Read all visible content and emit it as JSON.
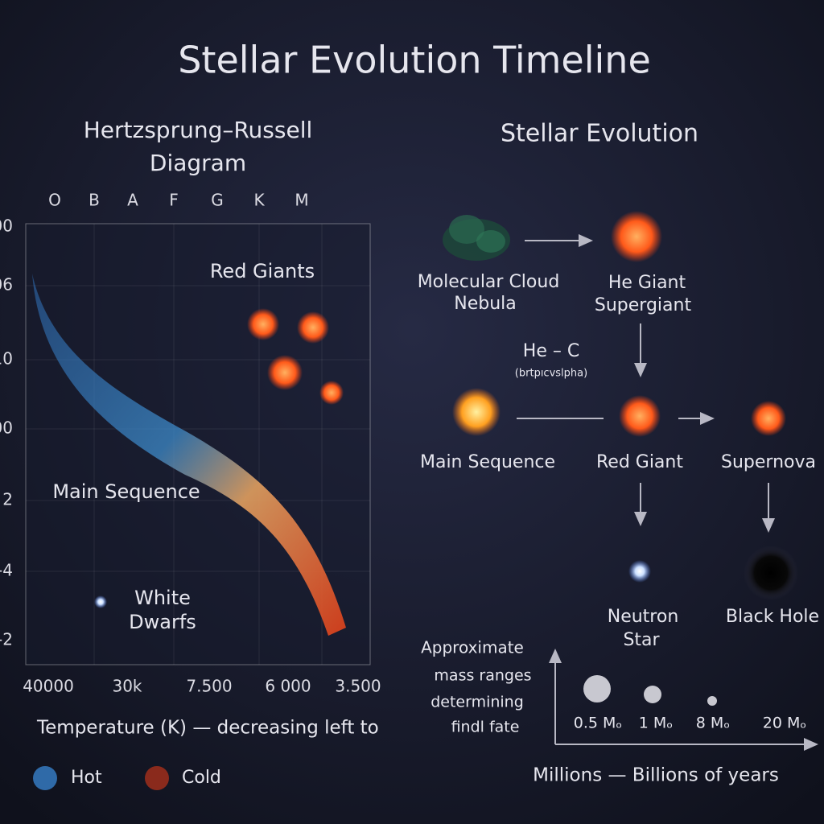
{
  "title": "Stellar Evolution Timeline",
  "hr": {
    "title": [
      "Hertzsprung–Russell",
      "Diagram"
    ],
    "spectral_classes": [
      "O",
      "B",
      "A",
      "F",
      "G",
      "K",
      "M"
    ],
    "y_labels": [
      "00",
      "06",
      "10",
      "00",
      "2",
      "-4",
      "-2"
    ],
    "x_labels": [
      "40000",
      "30k",
      "7.500",
      "6 000",
      "3.500"
    ],
    "regions": {
      "red_giants": "Red Giants",
      "main_sequence": "Main Sequence",
      "white_dwarfs": [
        "White",
        "Dwarfs"
      ]
    },
    "x_axis_label": "Temperature (K) — decreasing left to",
    "legend": [
      "Hot",
      "Cold"
    ]
  },
  "evolution": {
    "title": "Stellar Evolution",
    "nodes": {
      "cloud": [
        "Molecular Cloud",
        "Nebula"
      ],
      "giant": [
        "He Giant",
        "Supergiant"
      ],
      "main_sequence": "Main Sequence",
      "red_giant": "Red Giant",
      "supernova": "Supernova",
      "neutron_star": [
        "Neutron",
        "Star"
      ],
      "black_hole": "Black Hole"
    },
    "annotation": [
      "He – C",
      "(brtpıcvslpha)"
    ],
    "mass_note": [
      "Approximate",
      "mass ranges",
      "determining",
      "findl fate"
    ],
    "masses": [
      "0.5 Mₒ",
      "1 Mₒ",
      "8 Mₒ",
      "20 Mₒ"
    ],
    "time_axis": "Millions — Billions of years"
  }
}
